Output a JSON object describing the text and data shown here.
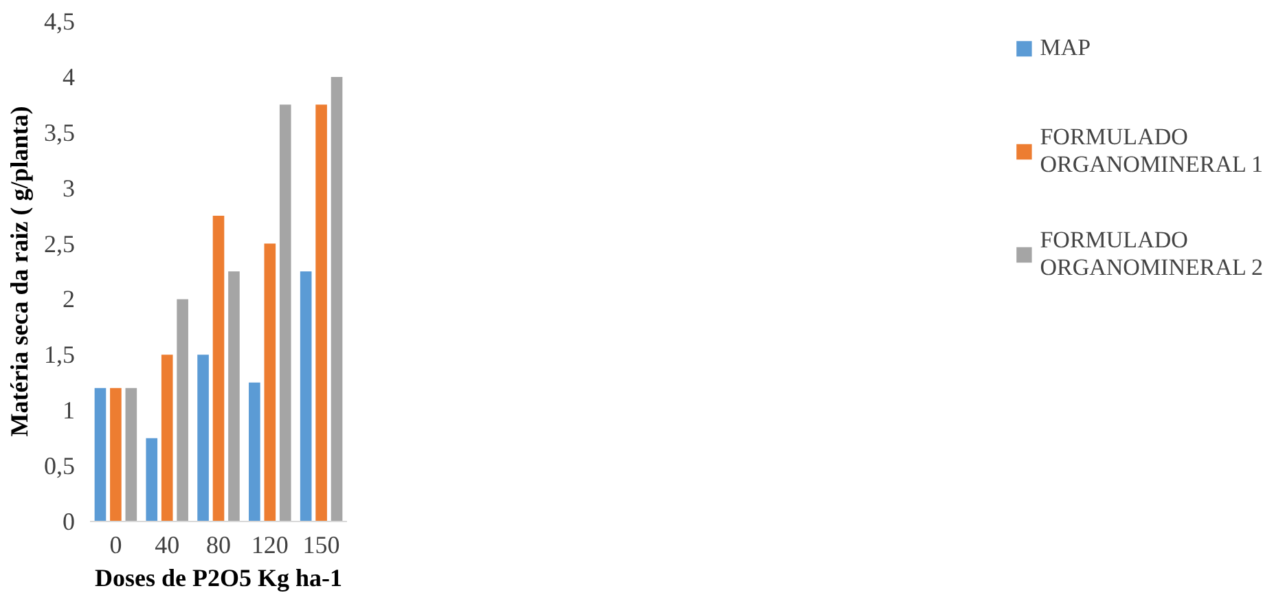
{
  "chart_data": {
    "type": "bar",
    "xlabel": "Doses de P2O5 Kg ha-1",
    "ylabel": "Matéria seca da raiz ( g/planta)",
    "categories": [
      "0",
      "40",
      "80",
      "120",
      "150"
    ],
    "series": [
      {
        "name": "MAP",
        "color": "#5b9bd5",
        "values": [
          1.2,
          0.75,
          1.5,
          1.25,
          2.25
        ]
      },
      {
        "name": "FORMULADO ORGANOMINERAL 1",
        "color": "#ed7d31",
        "values": [
          1.2,
          1.5,
          2.75,
          2.5,
          3.75
        ]
      },
      {
        "name": "FORMULADO ORGANOMINERAL 2",
        "color": "#a5a5a5",
        "values": [
          1.2,
          2.0,
          2.25,
          3.75,
          4.0
        ]
      }
    ],
    "ylim": [
      0,
      4.5
    ],
    "yticks": [
      {
        "value": 0,
        "label": "0"
      },
      {
        "value": 0.5,
        "label": "0,5"
      },
      {
        "value": 1,
        "label": "1"
      },
      {
        "value": 1.5,
        "label": "1,5"
      },
      {
        "value": 2,
        "label": "2"
      },
      {
        "value": 2.5,
        "label": "2,5"
      },
      {
        "value": 3,
        "label": "3"
      },
      {
        "value": 3.5,
        "label": "3,5"
      },
      {
        "value": 4,
        "label": "4"
      },
      {
        "value": 4.5,
        "label": "4,5"
      }
    ],
    "grid": false,
    "legend": "right"
  }
}
